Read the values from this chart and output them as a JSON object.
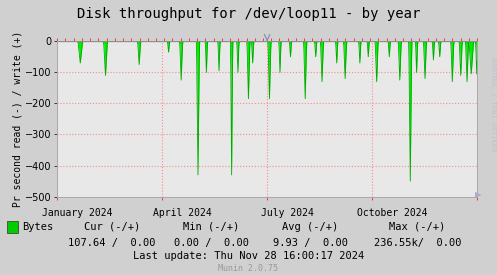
{
  "title": "Disk throughput for /dev/loop11 - by year",
  "ylabel": "Pr second read (-) / write (+)",
  "bg_color": "#d0d0d0",
  "plot_bg_color": "#e8e8e8",
  "grid_color": "#ff8080",
  "line_color": "#00ee00",
  "line_color_dark": "#00aa00",
  "ylim": [
    -500,
    0
  ],
  "yticks": [
    0,
    -100,
    -200,
    -300,
    -400,
    -500
  ],
  "xlabel_ticks": [
    "January 2024",
    "April 2024",
    "July 2024",
    "October 2024"
  ],
  "legend_label": "Bytes",
  "legend_color": "#00cc00",
  "cur_label": "Cur (-/+)",
  "min_label": "Min (-/+)",
  "avg_label": "Avg (-/+)",
  "max_label": "Max (-/+)",
  "cur_val": "107.64 /  0.00",
  "min_val": "0.00 /  0.00",
  "avg_val": "9.93 /  0.00",
  "max_val": "236.55k/  0.00",
  "last_update": "Last update: Thu Nov 28 16:00:17 2024",
  "munin_ver": "Munin 2.0.75",
  "right_text": "RRDTOOL / TOBI OETIKER",
  "spine_color": "#aaaaaa",
  "tick_color": "#ff0000"
}
